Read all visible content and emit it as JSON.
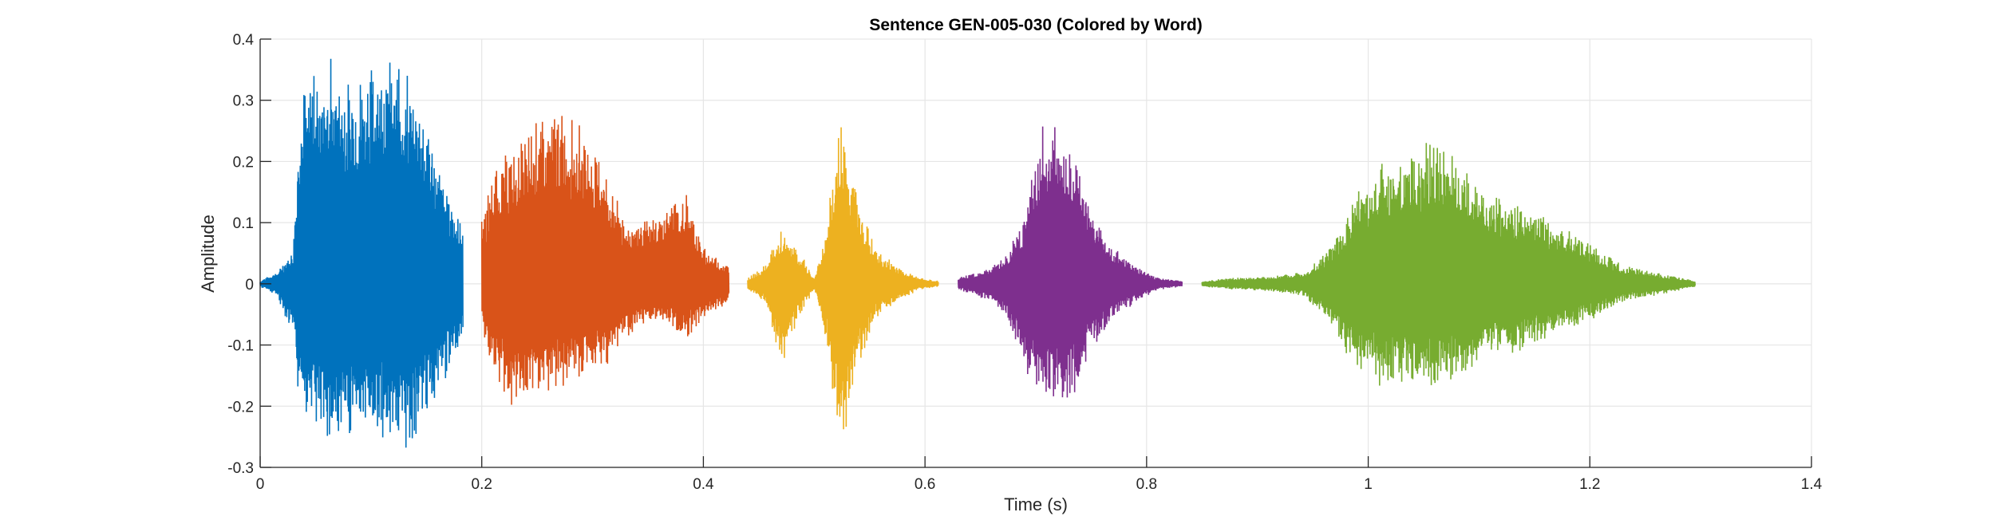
{
  "chart_data": {
    "type": "line",
    "title": "Sentence GEN-005-030 (Colored by Word)",
    "xlabel": "Time (s)",
    "ylabel": "Amplitude",
    "xlim": [
      0,
      1.4
    ],
    "ylim": [
      -0.3,
      0.4
    ],
    "xticks": [
      0,
      0.2,
      0.4,
      0.6,
      0.8,
      1,
      1.2,
      1.4
    ],
    "yticks": [
      -0.3,
      -0.2,
      -0.1,
      0,
      0.1,
      0.2,
      0.3,
      0.4
    ],
    "xtick_labels": [
      "0",
      "0.2",
      "0.4",
      "0.6",
      "0.8",
      "1",
      "1.2",
      "1.4"
    ],
    "ytick_labels": [
      "-0.3",
      "-0.2",
      "-0.1",
      "0",
      "0.1",
      "0.2",
      "0.3",
      "0.4"
    ],
    "grid": true,
    "series": [
      {
        "color": "#0072BD",
        "t_start": 0.0,
        "t_end": 0.183,
        "envelope": {
          "t": [
            0.0,
            0.015,
            0.03,
            0.035,
            0.05,
            0.065,
            0.08,
            0.1,
            0.12,
            0.135,
            0.15,
            0.17,
            0.183
          ],
          "max": [
            0.005,
            0.02,
            0.06,
            0.3,
            0.38,
            0.39,
            0.33,
            0.37,
            0.38,
            0.35,
            0.28,
            0.14,
            0.1
          ],
          "min": [
            -0.005,
            -0.02,
            -0.09,
            -0.2,
            -0.24,
            -0.27,
            -0.25,
            -0.25,
            -0.26,
            -0.28,
            -0.22,
            -0.15,
            -0.08
          ]
        }
      },
      {
        "color": "#D95319",
        "t_start": 0.2,
        "t_end": 0.423,
        "envelope": {
          "t": [
            0.2,
            0.215,
            0.23,
            0.25,
            0.27,
            0.29,
            0.31,
            0.33,
            0.36,
            0.385,
            0.4,
            0.423
          ],
          "max": [
            0.11,
            0.21,
            0.22,
            0.27,
            0.29,
            0.26,
            0.2,
            0.1,
            0.12,
            0.15,
            0.06,
            0.03
          ],
          "min": [
            -0.08,
            -0.17,
            -0.21,
            -0.19,
            -0.17,
            -0.16,
            -0.14,
            -0.09,
            -0.06,
            -0.09,
            -0.06,
            -0.03
          ]
        }
      },
      {
        "color": "#EDB120",
        "t_start": 0.44,
        "t_end": 0.612,
        "envelope": {
          "t": [
            0.44,
            0.455,
            0.47,
            0.485,
            0.5,
            0.512,
            0.522,
            0.528,
            0.54,
            0.555,
            0.575,
            0.595,
            0.612
          ],
          "max": [
            0.01,
            0.03,
            0.09,
            0.06,
            0.01,
            0.1,
            0.28,
            0.25,
            0.14,
            0.06,
            0.03,
            0.01,
            0.005
          ],
          "min": [
            -0.01,
            -0.03,
            -0.14,
            -0.06,
            -0.01,
            -0.1,
            -0.27,
            -0.25,
            -0.14,
            -0.06,
            -0.03,
            -0.01,
            -0.005
          ]
        }
      },
      {
        "color": "#7E2F8E",
        "t_start": 0.63,
        "t_end": 0.832,
        "envelope": {
          "t": [
            0.63,
            0.645,
            0.66,
            0.675,
            0.69,
            0.705,
            0.72,
            0.735,
            0.75,
            0.77,
            0.79,
            0.81,
            0.832
          ],
          "max": [
            0.01,
            0.02,
            0.03,
            0.05,
            0.12,
            0.26,
            0.27,
            0.22,
            0.13,
            0.06,
            0.03,
            0.01,
            0.005
          ],
          "min": [
            -0.01,
            -0.02,
            -0.03,
            -0.06,
            -0.15,
            -0.19,
            -0.2,
            -0.18,
            -0.11,
            -0.06,
            -0.03,
            -0.01,
            -0.005
          ]
        }
      },
      {
        "color": "#77AC30",
        "t_start": 0.85,
        "t_end": 1.295,
        "envelope": {
          "t": [
            0.85,
            0.88,
            0.91,
            0.94,
            0.96,
            0.975,
            0.99,
            1.01,
            1.03,
            1.055,
            1.08,
            1.11,
            1.14,
            1.17,
            1.2,
            1.23,
            1.26,
            1.295
          ],
          "max": [
            0.005,
            0.01,
            0.012,
            0.02,
            0.05,
            0.09,
            0.15,
            0.2,
            0.21,
            0.24,
            0.21,
            0.15,
            0.13,
            0.1,
            0.07,
            0.03,
            0.02,
            0.005
          ],
          "min": [
            -0.005,
            -0.01,
            -0.012,
            -0.02,
            -0.05,
            -0.1,
            -0.14,
            -0.17,
            -0.16,
            -0.18,
            -0.16,
            -0.12,
            -0.11,
            -0.09,
            -0.06,
            -0.03,
            -0.02,
            -0.005
          ]
        }
      }
    ]
  }
}
